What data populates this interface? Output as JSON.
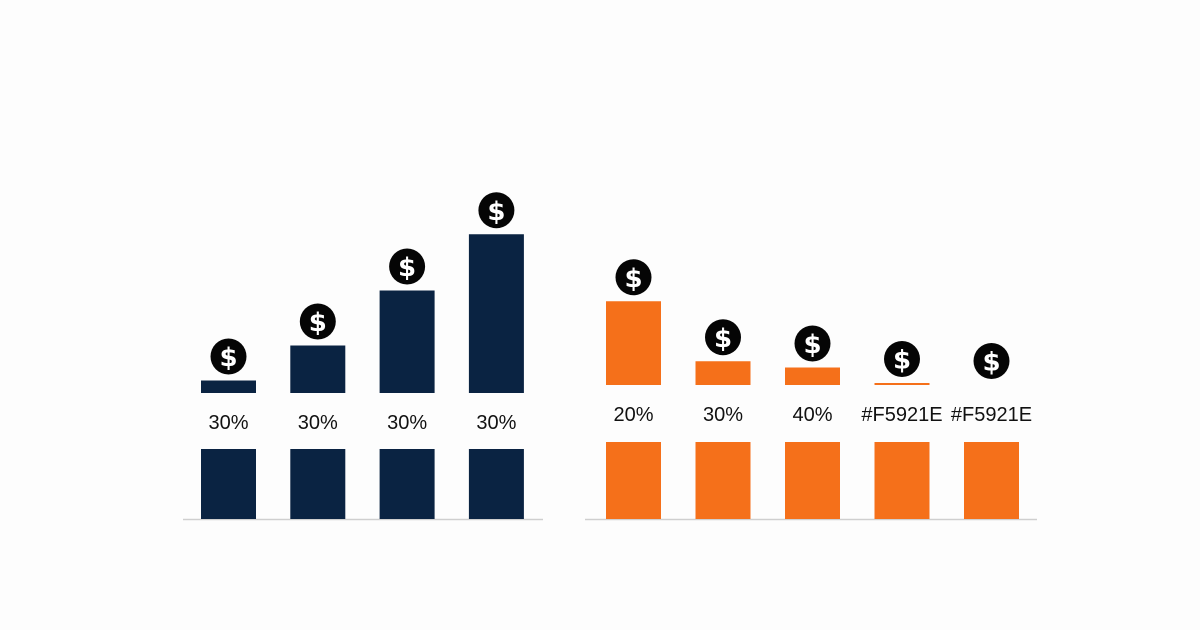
{
  "chart_data": [
    {
      "type": "bar",
      "series": [
        {
          "color": "#0a2342",
          "icon": "dollar-coin-icon",
          "coin_symbol": "$",
          "values": [
            1,
            3.8,
            8.2,
            12.7
          ],
          "labels": [
            "30%",
            "30%",
            "30%",
            "30%"
          ]
        }
      ],
      "grid": false,
      "legend": "none"
    },
    {
      "type": "bar",
      "series": [
        {
          "color": "#f5701a",
          "icon": "dollar-coin-icon",
          "coin_symbol": "$",
          "values": [
            6.7,
            1.9,
            1.4,
            0.1,
            0
          ],
          "labels": [
            "20%",
            "30%",
            "40%",
            "#F5921E",
            "#F5921E"
          ]
        }
      ],
      "grid": false,
      "legend": "none"
    }
  ]
}
